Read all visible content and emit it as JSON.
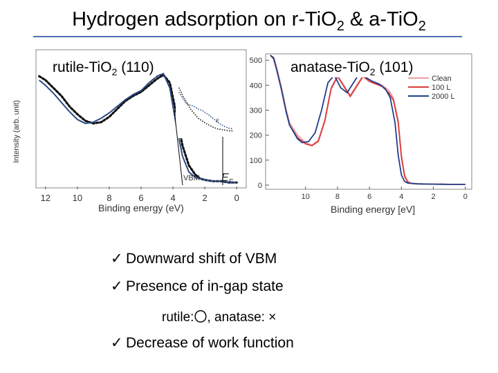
{
  "slide": {
    "title_main": "Hydrogen adsorption on r-TiO",
    "title_sub1": "2",
    "title_mid": " & a-TiO",
    "title_sub2": "2",
    "rule_color": "#4f6fb5"
  },
  "bullets": [
    {
      "check": "✓",
      "text": "Downward shift of VBM"
    },
    {
      "check": "✓",
      "text": "Presence of in-gap state"
    },
    {
      "check": "",
      "text": "rutile:〇, anatase: ×"
    },
    {
      "check": "✓",
      "text": "Decrease of work function"
    }
  ],
  "chart_data": [
    {
      "type": "line",
      "panel_label": {
        "pre": "rutile-TiO",
        "sub": "2",
        "post": " (110)"
      },
      "ylabel": "Intensity (arb. unit)",
      "xlabel": "Binding energy (eV)",
      "xlim": [
        12.6,
        -0.6
      ],
      "ylim": [
        0,
        1
      ],
      "xticks": [
        12,
        10,
        8,
        6,
        4,
        2,
        0
      ],
      "annotations": {
        "vbm": "VBM",
        "ef": "E",
        "ef_sub": "F",
        "inset_ef": "E"
      },
      "series": [
        {
          "style": "dotted",
          "color": "#111111",
          "x": [
            12.4,
            12,
            11.5,
            11,
            10.5,
            10,
            9.5,
            9,
            8.5,
            8,
            7.5,
            7,
            6.5,
            6,
            5.5,
            5,
            4.6,
            4.2,
            3.8,
            3.4,
            3.0,
            2.6,
            2.3,
            2.0,
            1.5,
            1.0,
            0.5,
            0.0
          ],
          "y": [
            0.83,
            0.8,
            0.74,
            0.68,
            0.6,
            0.54,
            0.49,
            0.47,
            0.48,
            0.52,
            0.58,
            0.64,
            0.68,
            0.71,
            0.76,
            0.81,
            0.84,
            0.78,
            0.55,
            0.3,
            0.15,
            0.08,
            0.05,
            0.04,
            0.03,
            0.03,
            0.02,
            0.02
          ]
        },
        {
          "style": "solid",
          "color": "#2b4a86",
          "x": [
            12.4,
            12,
            11.5,
            11,
            10.5,
            10,
            9.5,
            9,
            8.5,
            8,
            7.5,
            7,
            6.5,
            6,
            5.5,
            5,
            4.6,
            4.2,
            3.8,
            3.4,
            3.0,
            2.6,
            2.3,
            2.0,
            1.5,
            1.0,
            0.5,
            0.0
          ],
          "y": [
            0.8,
            0.76,
            0.7,
            0.63,
            0.56,
            0.5,
            0.47,
            0.48,
            0.51,
            0.55,
            0.6,
            0.65,
            0.69,
            0.72,
            0.78,
            0.83,
            0.85,
            0.74,
            0.46,
            0.22,
            0.1,
            0.06,
            0.05,
            0.04,
            0.03,
            0.03,
            0.02,
            0.02
          ]
        }
      ],
      "inset_series": [
        {
          "style": "dotted",
          "color": "#111111",
          "x": [
            3.2,
            3.0,
            2.8,
            2.6,
            2.4,
            2.2,
            2.0,
            1.8,
            1.6,
            1.4,
            1.2,
            1.0,
            0.8,
            0.6,
            0.4
          ],
          "y": [
            0.95,
            0.82,
            0.72,
            0.62,
            0.55,
            0.48,
            0.44,
            0.4,
            0.37,
            0.34,
            0.32,
            0.31,
            0.3,
            0.29,
            0.29
          ]
        },
        {
          "style": "dotted",
          "color": "#2b4a86",
          "x": [
            3.2,
            3.0,
            2.8,
            2.6,
            2.4,
            2.2,
            2.0,
            1.8,
            1.6,
            1.4,
            1.2,
            1.0,
            0.8,
            0.6,
            0.4
          ],
          "y": [
            0.88,
            0.78,
            0.7,
            0.68,
            0.66,
            0.62,
            0.6,
            0.56,
            0.52,
            0.47,
            0.42,
            0.38,
            0.35,
            0.33,
            0.32
          ]
        }
      ]
    },
    {
      "type": "line",
      "panel_label": {
        "pre": "anatase-TiO",
        "sub": "2",
        "post": " (101)"
      },
      "xlabel": "Binding energy [eV]",
      "xlim": [
        12.5,
        -0.4
      ],
      "ylim": [
        0,
        520
      ],
      "xticks": [
        10,
        8,
        6,
        4,
        2,
        0
      ],
      "yticks": [
        0,
        100,
        200,
        300,
        400,
        500
      ],
      "legend": {
        "position": "top-right"
      },
      "series": [
        {
          "name": "Clean",
          "color": "#e8a0a0",
          "x": [
            12.2,
            12,
            11.8,
            11.5,
            11.2,
            11,
            10.5,
            10,
            9.6,
            9.2,
            8.8,
            8.4,
            8.0,
            7.6,
            7.2,
            6.8,
            6.4,
            6.0,
            5.6,
            5.2,
            4.8,
            4.5,
            4.2,
            4.0,
            3.8,
            3.6,
            3.4,
            3.0,
            2.0,
            1.0,
            0.0
          ],
          "y": [
            530,
            510,
            470,
            390,
            300,
            250,
            200,
            170,
            160,
            180,
            260,
            390,
            440,
            400,
            360,
            400,
            440,
            420,
            410,
            400,
            380,
            350,
            260,
            120,
            40,
            15,
            8,
            5,
            4,
            3,
            3
          ]
        },
        {
          "name": "100 L",
          "color": "#d83b3b",
          "x": [
            12.2,
            12,
            11.8,
            11.5,
            11.2,
            11,
            10.5,
            10,
            9.6,
            9.2,
            8.8,
            8.4,
            8.0,
            7.6,
            7.2,
            6.8,
            6.4,
            6.0,
            5.6,
            5.2,
            4.8,
            4.5,
            4.2,
            4.0,
            3.8,
            3.6,
            3.4,
            3.0,
            2.0,
            1.0,
            0.0
          ],
          "y": [
            525,
            505,
            460,
            380,
            290,
            240,
            190,
            165,
            158,
            175,
            255,
            385,
            435,
            395,
            355,
            395,
            435,
            415,
            405,
            395,
            370,
            340,
            250,
            110,
            35,
            12,
            7,
            5,
            4,
            3,
            3
          ]
        },
        {
          "name": "2000 L",
          "color": "#1f3e8c",
          "x": [
            12.2,
            12,
            11.8,
            11.5,
            11.2,
            11,
            10.5,
            10.2,
            9.8,
            9.4,
            9.0,
            8.6,
            8.2,
            7.8,
            7.4,
            7.0,
            6.6,
            6.2,
            5.8,
            5.4,
            5.0,
            4.7,
            4.4,
            4.2,
            4.0,
            3.8,
            3.6,
            3.0,
            2.0,
            1.0,
            0.0
          ],
          "y": [
            530,
            510,
            460,
            380,
            290,
            240,
            185,
            170,
            175,
            210,
            300,
            410,
            440,
            390,
            370,
            410,
            450,
            430,
            415,
            405,
            385,
            350,
            250,
            120,
            40,
            15,
            8,
            5,
            4,
            3,
            3
          ]
        }
      ]
    }
  ]
}
